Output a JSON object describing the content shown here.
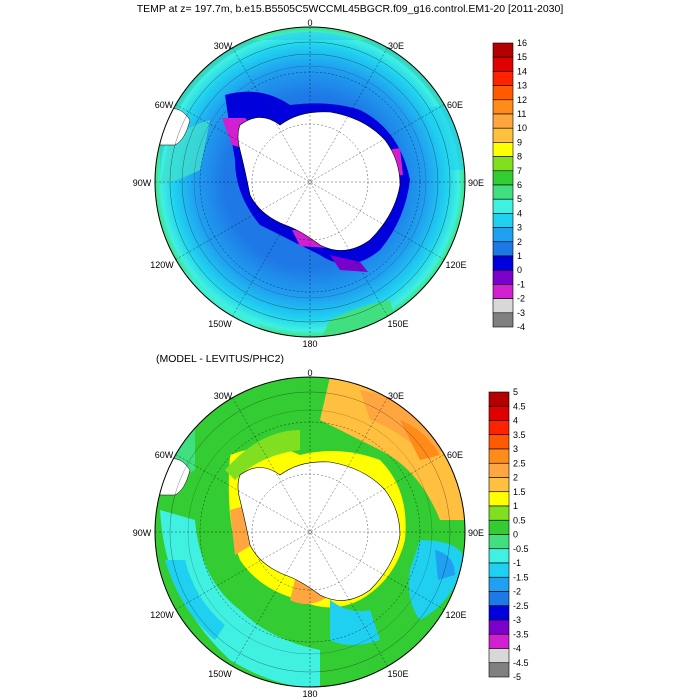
{
  "title": "TEMP at z= 197.7m, b.e15.B5505C5WCCML45BGCR.f09_g16.control.EM1-20 [2011-2030]",
  "maps": [
    {
      "id": "model",
      "subtitle": "",
      "longitude_labels": {
        "0": "0",
        "30E": "30E",
        "60E": "60E",
        "90E": "90E",
        "120E": "120E",
        "150E": "150E",
        "180": "180",
        "150W": "150W",
        "120W": "120W",
        "90W": "90W",
        "60W": "60W",
        "30W": "30W"
      },
      "colorbar": {
        "labels": [
          "16",
          "15",
          "14",
          "13",
          "12",
          "11",
          "10",
          "9",
          "8",
          "7",
          "6",
          "5",
          "4",
          "3",
          "2",
          "1",
          "0",
          "-1",
          "-2",
          "-3",
          "-4"
        ],
        "colors": [
          "#b30000",
          "#e00000",
          "#ff2200",
          "#ff5a00",
          "#ff8c1a",
          "#ffa640",
          "#ffc040",
          "#ffff00",
          "#80e020",
          "#33cc33",
          "#40e080",
          "#40f0e0",
          "#20d0f0",
          "#20a0f0",
          "#1e78e6",
          "#0000dd",
          "#7a00cc",
          "#d020d0",
          "#d8d8d8",
          "#808080"
        ]
      }
    },
    {
      "id": "difference",
      "subtitle": "(MODEL - LEVITUS/PHC2)",
      "longitude_labels": {
        "0": "0",
        "30E": "30E",
        "60E": "60E",
        "90E": "90E",
        "120E": "120E",
        "150E": "150E",
        "180": "180",
        "150W": "150W",
        "120W": "120W",
        "90W": "90W",
        "60W": "60W",
        "30W": "30W"
      },
      "colorbar": {
        "labels": [
          "5",
          "4.5",
          "4",
          "3.5",
          "3",
          "2.5",
          "2",
          "1.5",
          "1",
          "0.5",
          "0",
          "-0.5",
          "-1",
          "-1.5",
          "-2",
          "-2.5",
          "-3",
          "-3.5",
          "-4",
          "-4.5",
          "-5"
        ],
        "colors": [
          "#b30000",
          "#e00000",
          "#ff2200",
          "#ff5a00",
          "#ff8c1a",
          "#ffa640",
          "#ffc040",
          "#ffff00",
          "#80e020",
          "#33cc33",
          "#40e080",
          "#40f0e0",
          "#20d0f0",
          "#20a0f0",
          "#1e78e6",
          "#0000dd",
          "#7a00cc",
          "#d020d0",
          "#d8d8d8",
          "#808080"
        ]
      }
    }
  ]
}
